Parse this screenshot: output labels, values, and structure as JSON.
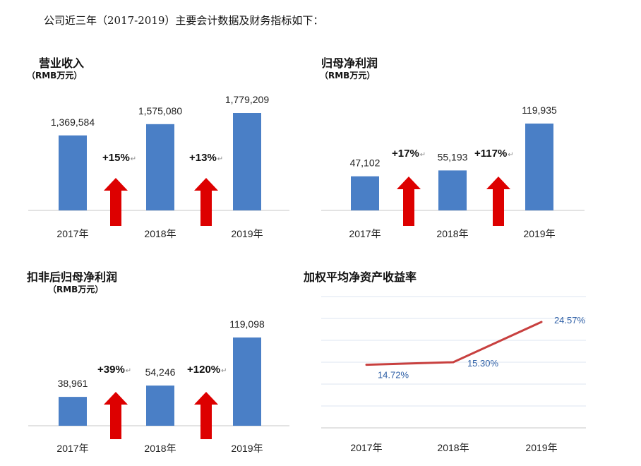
{
  "intro": "公司近三年（2017-2019）主要会计数据及财务指标如下：",
  "colors": {
    "bar": "#4a7fc6",
    "arrow": "#dd0000",
    "line": "#c8403f",
    "line_label": "#2e5fa6",
    "grid": "#dde6f0",
    "axis": "#c7c7c7"
  },
  "chart_data": [
    {
      "type": "bar",
      "title": "营业收入",
      "subtitle": "（RMB万元）",
      "categories": [
        "2017年",
        "2018年",
        "2019年"
      ],
      "values": [
        1369584,
        1575080,
        1779209
      ],
      "value_labels": [
        "1,369,584",
        "1,575,080",
        "1,779,209"
      ],
      "growth_labels": [
        "+15%",
        "+13%"
      ],
      "growth_marker": "↵"
    },
    {
      "type": "bar",
      "title": "归母净利润",
      "subtitle": "（RMB万元）",
      "categories": [
        "2017年",
        "2018年",
        "2019年"
      ],
      "values": [
        47102,
        55193,
        119935
      ],
      "value_labels": [
        "47,102",
        "55,193",
        "119,935"
      ],
      "growth_labels": [
        "+17%",
        "+117%"
      ],
      "growth_marker": "↵"
    },
    {
      "type": "bar",
      "title": "扣非后归母净利润",
      "subtitle": "（RMB万元）",
      "categories": [
        "2017年",
        "2018年",
        "2019年"
      ],
      "values": [
        38961,
        54246,
        119098
      ],
      "value_labels": [
        "38,961",
        "54,246",
        "119,098"
      ],
      "growth_labels": [
        "+39%",
        "+120%"
      ],
      "growth_marker": "↵"
    },
    {
      "type": "line",
      "title": "加权平均净资产收益率",
      "categories": [
        "2017年",
        "2018年",
        "2019年"
      ],
      "values": [
        14.72,
        15.3,
        24.57
      ],
      "value_labels": [
        "14.72%",
        "15.30%",
        "24.57%"
      ],
      "grid": true
    }
  ]
}
